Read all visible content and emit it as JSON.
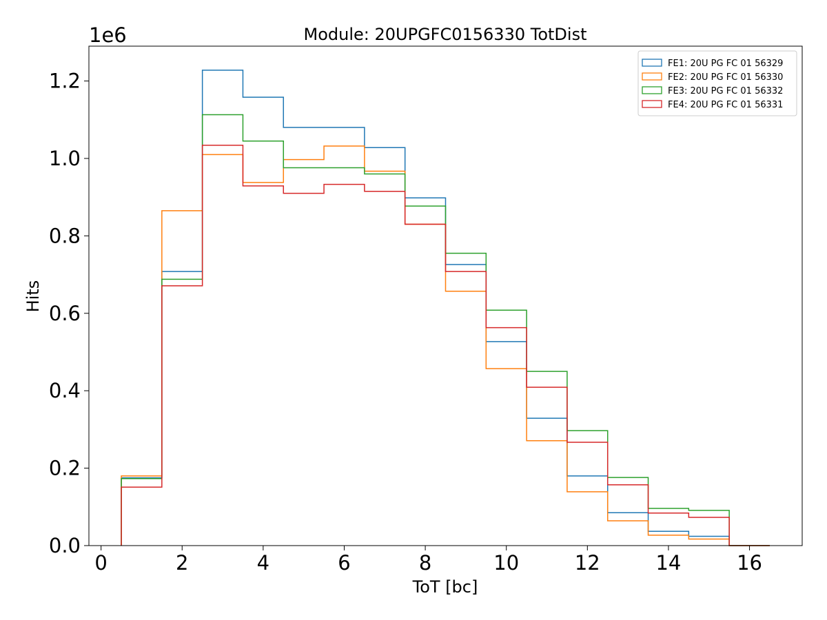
{
  "chart_data": {
    "type": "step",
    "title": "Module: 20UPGFC0156330 TotDist",
    "xlabel": "ToT [bc]",
    "ylabel": "Hits",
    "y_offset_label": "1e6",
    "xlim": [
      -0.3,
      17.3
    ],
    "ylim": [
      0,
      1290000
    ],
    "xticks": [
      0,
      2,
      4,
      6,
      8,
      10,
      12,
      14,
      16
    ],
    "yticks": [
      0.0,
      0.2,
      0.4,
      0.6,
      0.8,
      1.0,
      1.2
    ],
    "ytick_labels": [
      "0.0",
      "0.2",
      "0.4",
      "0.6",
      "0.8",
      "1.0",
      "1.2"
    ],
    "bin_edges": [
      0.5,
      1.5,
      2.5,
      3.5,
      4.5,
      5.5,
      6.5,
      7.5,
      8.5,
      9.5,
      10.5,
      11.5,
      12.5,
      13.5,
      14.5,
      15.5,
      16.5
    ],
    "legend_position": "upper right",
    "series": [
      {
        "name": "FE1: 20U PG FC 01 56329",
        "color": "#1f77b4",
        "values": [
          175000,
          708000,
          1228000,
          1158000,
          1080000,
          1080000,
          1028000,
          898000,
          726000,
          527000,
          329000,
          180000,
          85000,
          37000,
          24000,
          0
        ]
      },
      {
        "name": "FE2: 20U PG FC 01 56330",
        "color": "#ff7f0e",
        "values": [
          180000,
          865000,
          1010000,
          938000,
          997000,
          1032000,
          967000,
          830000,
          657000,
          457000,
          271000,
          139000,
          64000,
          27000,
          17000,
          0
        ]
      },
      {
        "name": "FE3: 20U PG FC 01 56332",
        "color": "#2ca02c",
        "values": [
          173000,
          688000,
          1113000,
          1045000,
          976000,
          976000,
          960000,
          877000,
          755000,
          608000,
          450000,
          297000,
          176000,
          96000,
          91000,
          0
        ]
      },
      {
        "name": "FE4: 20U PG FC 01 56331",
        "color": "#d62728",
        "values": [
          151000,
          671000,
          1034000,
          929000,
          910000,
          933000,
          915000,
          830000,
          708000,
          563000,
          409000,
          267000,
          157000,
          84000,
          73000,
          0
        ]
      }
    ]
  }
}
